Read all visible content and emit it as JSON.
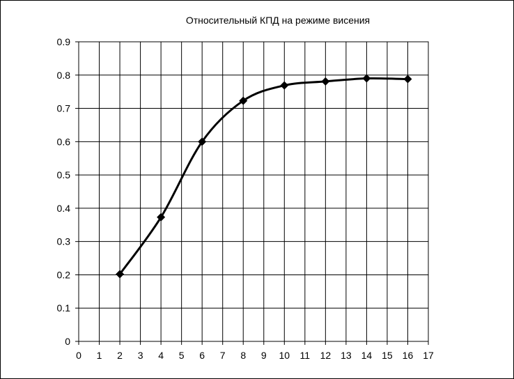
{
  "chart_data": {
    "type": "line",
    "title": "Относительный КПД на режиме висения",
    "xlabel": "",
    "ylabel": "",
    "xlim": [
      0,
      17
    ],
    "ylim": [
      0,
      0.9
    ],
    "x_ticks": [
      "0",
      "1",
      "2",
      "3",
      "4",
      "5",
      "6",
      "7",
      "8",
      "9",
      "10",
      "11",
      "12",
      "13",
      "14",
      "15",
      "16",
      "17"
    ],
    "y_ticks": [
      "0",
      "0.1",
      "0.2",
      "0.3",
      "0.4",
      "0.5",
      "0.6",
      "0.7",
      "0.8",
      "0.9"
    ],
    "grid": true,
    "legend": "none",
    "smooth": true,
    "marker": "diamond",
    "colors": {
      "line": "#000000",
      "grid": "#000000",
      "background": "#ffffff"
    },
    "series": [
      {
        "x": [
          2,
          4,
          6,
          8,
          10,
          12,
          14,
          16
        ],
        "y": [
          0.202,
          0.373,
          0.6,
          0.723,
          0.769,
          0.781,
          0.79,
          0.788
        ]
      }
    ]
  }
}
